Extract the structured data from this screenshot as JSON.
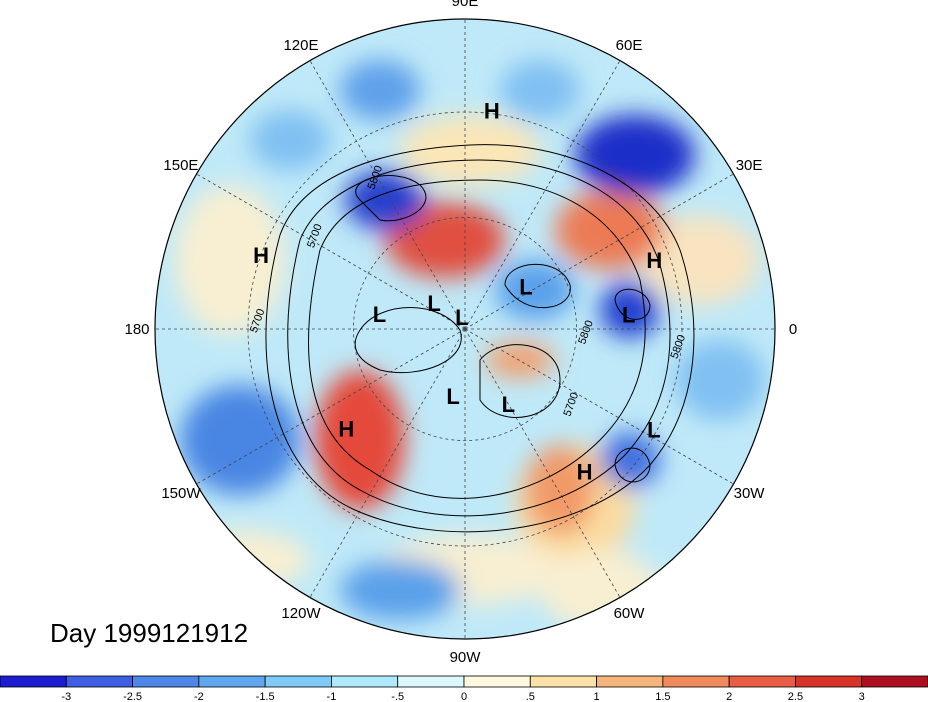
{
  "map": {
    "projection": "polar-stereographic-north",
    "longitude_labels": [
      {
        "text": "90E",
        "angle": 90
      },
      {
        "text": "60E",
        "angle": 60
      },
      {
        "text": "30E",
        "angle": 30
      },
      {
        "text": "0",
        "angle": 0
      },
      {
        "text": "30W",
        "angle": -30
      },
      {
        "text": "60W",
        "angle": -60
      },
      {
        "text": "90W",
        "angle": -90
      },
      {
        "text": "120W",
        "angle": -120
      },
      {
        "text": "150W",
        "angle": -150
      },
      {
        "text": "180",
        "angle": 180
      },
      {
        "text": "150E",
        "angle": 150
      },
      {
        "text": "120E",
        "angle": 120
      }
    ],
    "pressure_centers": [
      {
        "type": "H",
        "lon": 83,
        "rf": 0.71
      },
      {
        "type": "H",
        "lon": 160,
        "rf": 0.7
      },
      {
        "type": "H",
        "lon": 20,
        "rf": 0.65
      },
      {
        "type": "L",
        "lon": 35,
        "rf": 0.24
      },
      {
        "type": "L",
        "lon": 5,
        "rf": 0.53
      },
      {
        "type": "L",
        "lon": 105,
        "rf": 0.04
      },
      {
        "type": "L",
        "lon": 140,
        "rf": 0.13
      },
      {
        "type": "L",
        "lon": 170,
        "rf": 0.28
      },
      {
        "type": "L",
        "lon": -100,
        "rf": 0.22
      },
      {
        "type": "L",
        "lon": -60,
        "rf": 0.28
      },
      {
        "type": "H",
        "lon": -140,
        "rf": 0.5
      },
      {
        "type": "H",
        "lon": -50,
        "rf": 0.6
      },
      {
        "type": "L",
        "lon": -28,
        "rf": 0.69
      }
    ],
    "contour_labels": [
      {
        "text": "5800",
        "lon": 120,
        "rf": 0.56
      },
      {
        "text": "5700",
        "lon": 148,
        "rf": 0.56
      },
      {
        "text": "5700",
        "lon": 178,
        "rf": 0.66
      },
      {
        "text": "5800",
        "lon": -5,
        "rf": 0.7
      },
      {
        "text": "5700",
        "lon": -35,
        "rf": 0.43
      },
      {
        "text": "5800",
        "lon": -2,
        "rf": 0.4
      }
    ],
    "anomaly_colors": {
      "deep_blue": "#1e2fc8",
      "mid_blue": "#4a8fe0",
      "light_blue": "#aee6f8",
      "cream": "#fcf2cc",
      "orange": "#f5a060",
      "red": "#d93c30"
    }
  },
  "date_label": "Day 1999121912",
  "colorbar": {
    "colors": [
      "#1c1cd0",
      "#3e5fe3",
      "#4f86ea",
      "#5fa8f0",
      "#80caf7",
      "#aeeafb",
      "#dcf8fc",
      "#fdf8de",
      "#fbe3a8",
      "#f5b47a",
      "#f08a5a",
      "#ea5c44",
      "#d93328",
      "#ac1020"
    ],
    "ticks": [
      "-3",
      "-2.5",
      "-2",
      "-1.5",
      "-1",
      "-.5",
      "0",
      ".5",
      "1",
      "1.5",
      "2",
      "2.5",
      "3"
    ]
  }
}
